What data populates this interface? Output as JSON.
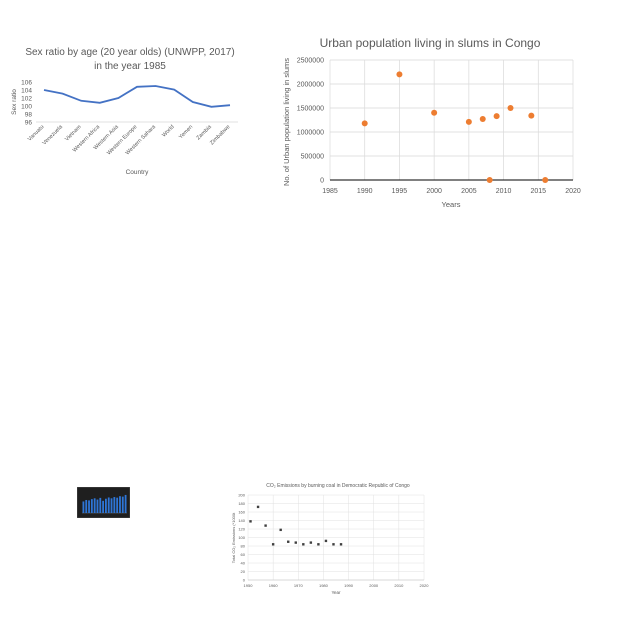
{
  "chart_data": [
    {
      "type": "line",
      "title": "Sex ratio by age (20 year olds) (UNWPP, 2017) in the year 1985",
      "xlabel": "Country",
      "ylabel": "Sex ratio",
      "categories": [
        "Vanuatu",
        "Venezuela",
        "Vietnam",
        "Western Africa",
        "Western Asia",
        "Western Europe",
        "Western Sahara",
        "World",
        "Yemen",
        "Zambia",
        "Zimbabwe"
      ],
      "values": [
        104.0,
        103.1,
        101.3,
        100.8,
        102.0,
        104.8,
        105.0,
        104.1,
        101.0,
        99.8,
        100.2
      ],
      "ylim": [
        96,
        106
      ],
      "yticks": [
        "96",
        "98",
        "100",
        "102",
        "104",
        "106"
      ],
      "grid": false,
      "color": "#4472c4"
    },
    {
      "type": "scatter",
      "title": "Urban population living in slums in Congo",
      "xlabel": "Years",
      "ylabel": "No. of Urban population living in slums",
      "x": [
        1990,
        1995,
        2000,
        2005,
        2007,
        2008,
        2009,
        2011,
        2014,
        2016
      ],
      "y": [
        1180000,
        2200000,
        1400000,
        1210000,
        1270000,
        0,
        1330000,
        1500000,
        1340000,
        0
      ],
      "xlim": [
        1985,
        2020
      ],
      "ylim": [
        0,
        2500000
      ],
      "xticks": [
        "1985",
        "1990",
        "1995",
        "2000",
        "2005",
        "2010",
        "2015",
        "2020"
      ],
      "yticks": [
        "0",
        "500000",
        "1000000",
        "1500000",
        "2000000",
        "2500000"
      ],
      "grid": true,
      "color": "#ed7d31"
    },
    {
      "type": "bar",
      "title": "",
      "categories": [
        "",
        "",
        "",
        "",
        "",
        "",
        "",
        "",
        "",
        "",
        "",
        "",
        "",
        "",
        "",
        ""
      ],
      "values": [
        0.55,
        0.62,
        0.6,
        0.66,
        0.7,
        0.64,
        0.72,
        0.58,
        0.68,
        0.74,
        0.7,
        0.76,
        0.73,
        0.8,
        0.78,
        0.86
      ],
      "ylim": [
        0,
        1
      ],
      "color": "#2e75d6",
      "background": "#1f1f1f"
    },
    {
      "type": "scatter",
      "title": "CO₂ Emissions by burning coal in Democratic Republic of Congo",
      "xlabel": "Year",
      "ylabel": "Total CO₂ Emissions (*1000t",
      "x": [
        1951,
        1954,
        1957,
        1960,
        1963,
        1966,
        1969,
        1972,
        1975,
        1978,
        1981,
        1984,
        1987
      ],
      "y": [
        138,
        172,
        128,
        84,
        118,
        90,
        88,
        84,
        88,
        84,
        92,
        84,
        84
      ],
      "xlim": [
        1950,
        2020
      ],
      "ylim": [
        0,
        200
      ],
      "xticks": [
        "1950",
        "1960",
        "1970",
        "1980",
        "1990",
        "2000",
        "2010",
        "2020"
      ],
      "yticks": [
        "0",
        "20",
        "40",
        "60",
        "80",
        "100",
        "120",
        "140",
        "160",
        "180",
        "200"
      ],
      "grid": true,
      "color": "#404040"
    }
  ]
}
